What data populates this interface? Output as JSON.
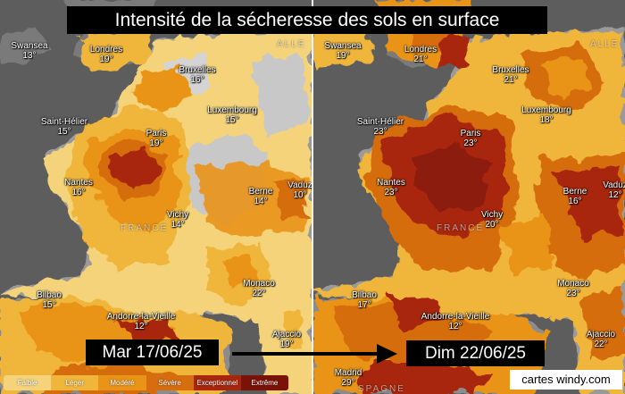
{
  "title": "Intensité de la sécheresse des sols en surface",
  "dates": {
    "left": "Mar 17/06/25",
    "right": "Dim 22/06/25"
  },
  "credit": "cartes windy.com",
  "legend": [
    {
      "label": "Faible",
      "color": "#f4d37a"
    },
    {
      "label": "Léger",
      "color": "#f0b63b"
    },
    {
      "label": "Modéré",
      "color": "#e99419"
    },
    {
      "label": "Sévère",
      "color": "#d66d0f"
    },
    {
      "label": "Exceptionnel",
      "color": "#a8260e"
    },
    {
      "label": "Extrême",
      "color": "#7a1208"
    }
  ],
  "countries": {
    "france": "FRANCE",
    "allemagne": "ALLE",
    "espagne": "SPAGNE"
  },
  "panels": {
    "left": {
      "cities": [
        {
          "name": "Swansea",
          "temp": "13°"
        },
        {
          "name": "Londres",
          "temp": "19°"
        },
        {
          "name": "Bruxelles",
          "temp": "16°"
        },
        {
          "name": "Luxembourg",
          "temp": "15°"
        },
        {
          "name": "Saint-Hélier",
          "temp": "15°"
        },
        {
          "name": "Paris",
          "temp": "19°"
        },
        {
          "name": "Nantes",
          "temp": "16°"
        },
        {
          "name": "Vichy",
          "temp": "14°"
        },
        {
          "name": "Berne",
          "temp": "14°"
        },
        {
          "name": "Vaduz",
          "temp": "10°"
        },
        {
          "name": "Bilbao",
          "temp": "15°"
        },
        {
          "name": "Monaco",
          "temp": "22°"
        },
        {
          "name": "Andorre-la-Vieille",
          "temp": "12°"
        },
        {
          "name": "Ajaccio",
          "temp": "19°"
        }
      ]
    },
    "right": {
      "cities": [
        {
          "name": "Swansea",
          "temp": "19°"
        },
        {
          "name": "Londres",
          "temp": "21°"
        },
        {
          "name": "Bruxelles",
          "temp": "21°"
        },
        {
          "name": "Luxembourg",
          "temp": "18°"
        },
        {
          "name": "Saint-Hélier",
          "temp": "23°"
        },
        {
          "name": "Paris",
          "temp": "23°"
        },
        {
          "name": "Nantes",
          "temp": "23°"
        },
        {
          "name": "Vichy",
          "temp": "20°"
        },
        {
          "name": "Berne",
          "temp": "16°"
        },
        {
          "name": "Vaduz",
          "temp": "12°"
        },
        {
          "name": "Bilbao",
          "temp": "17°"
        },
        {
          "name": "Monaco",
          "temp": "23°"
        },
        {
          "name": "Andorre-la-Vieille",
          "temp": "12°"
        },
        {
          "name": "Ajaccio",
          "temp": "22°"
        },
        {
          "name": "Madrid",
          "temp": "29°"
        }
      ]
    }
  }
}
